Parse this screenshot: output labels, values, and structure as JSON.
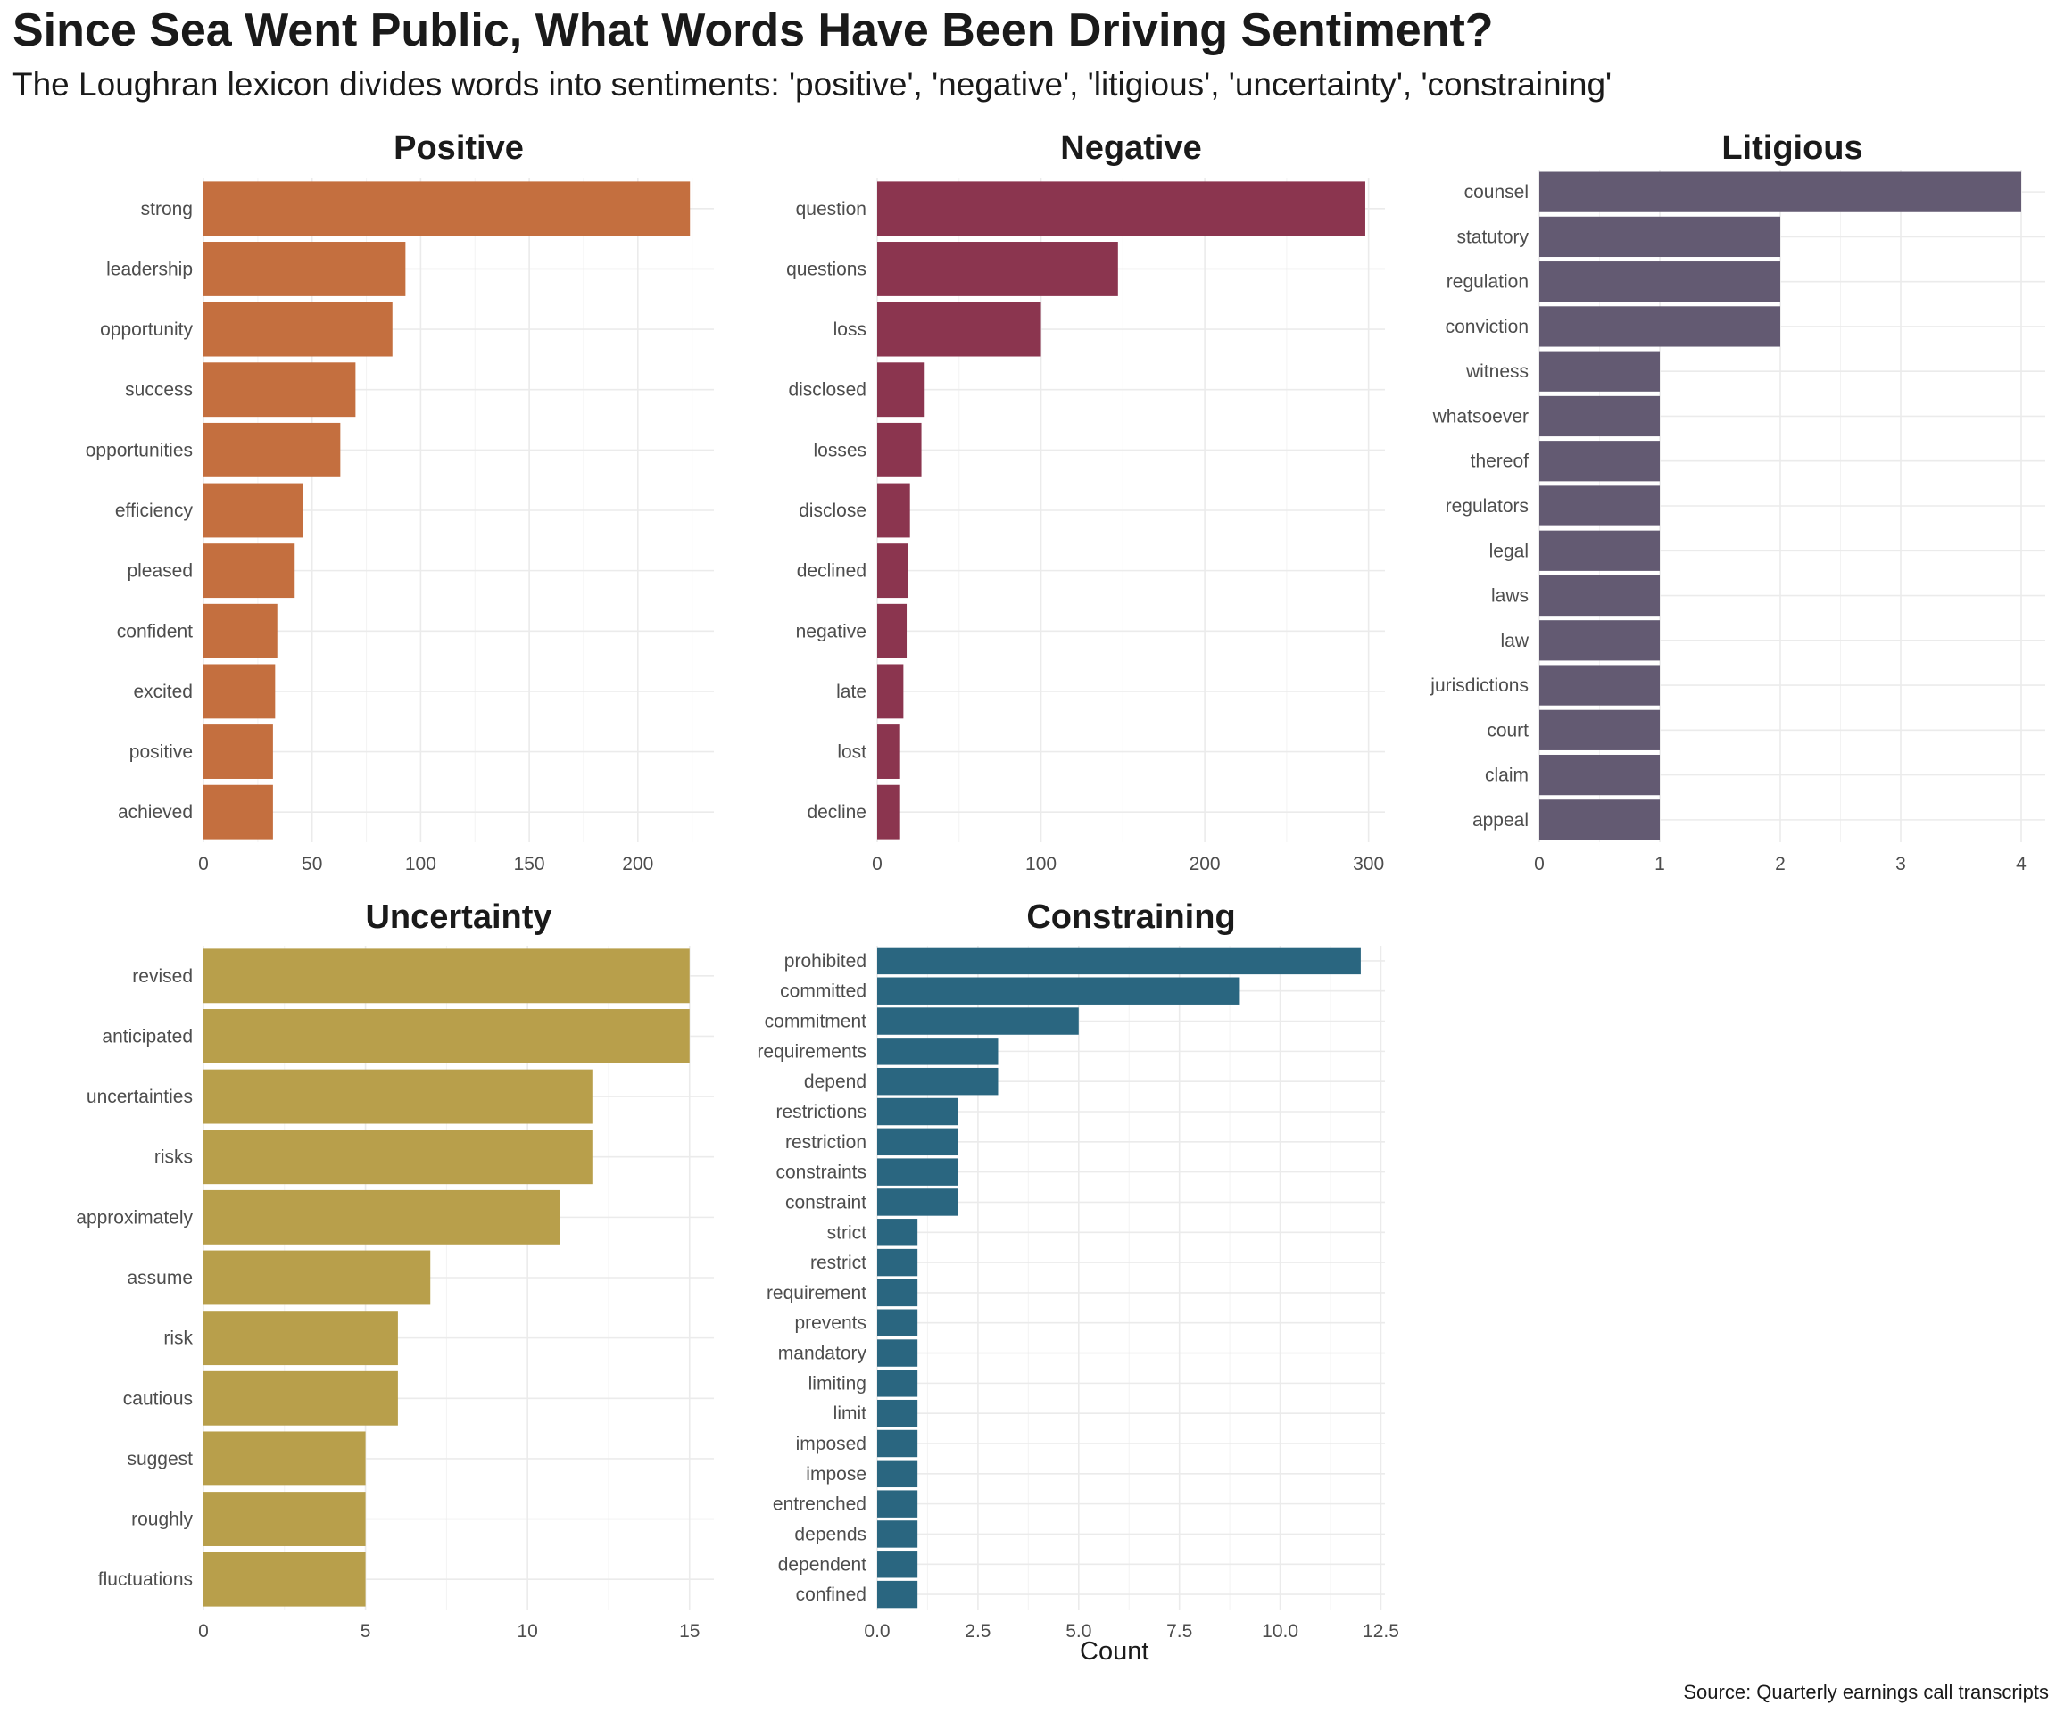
{
  "title": "Since Sea Went Public, What Words Have Been Driving Sentiment?",
  "subtitle": "The Loughran lexicon divides words into sentiments: 'positive', 'negative', 'litigious', 'uncertainty', 'constraining'",
  "x_axis_label": "Count",
  "caption": "Source: Quarterly earnings call transcripts",
  "chart_data": [
    {
      "type": "bar",
      "orientation": "horizontal",
      "title": "Positive",
      "color": "#C46F3F",
      "categories": [
        "strong",
        "leadership",
        "opportunity",
        "success",
        "opportunities",
        "efficiency",
        "pleased",
        "confident",
        "excited",
        "positive",
        "achieved"
      ],
      "values": [
        224,
        93,
        87,
        70,
        63,
        46,
        42,
        34,
        33,
        32,
        32
      ],
      "xlim": [
        0,
        235
      ],
      "ticks": [
        0,
        50,
        100,
        150,
        200
      ],
      "tick_labels": [
        "0",
        "50",
        "100",
        "150",
        "200"
      ],
      "grid": true
    },
    {
      "type": "bar",
      "orientation": "horizontal",
      "title": "Negative",
      "color": "#8B354F",
      "categories": [
        "question",
        "questions",
        "loss",
        "disclosed",
        "losses",
        "disclose",
        "declined",
        "negative",
        "late",
        "lost",
        "decline"
      ],
      "values": [
        298,
        147,
        100,
        29,
        27,
        20,
        19,
        18,
        16,
        14,
        14
      ],
      "xlim": [
        0,
        310
      ],
      "ticks": [
        0,
        100,
        200,
        300
      ],
      "tick_labels": [
        "0",
        "100",
        "200",
        "300"
      ],
      "grid": true
    },
    {
      "type": "bar",
      "orientation": "horizontal",
      "title": "Litigious",
      "color": "#635A72",
      "categories": [
        "counsel",
        "statutory",
        "regulation",
        "conviction",
        "witness",
        "whatsoever",
        "thereof",
        "regulators",
        "legal",
        "laws",
        "law",
        "jurisdictions",
        "court",
        "claim",
        "appeal"
      ],
      "values": [
        4,
        2,
        2,
        2,
        1,
        1,
        1,
        1,
        1,
        1,
        1,
        1,
        1,
        1,
        1
      ],
      "xlim": [
        0,
        4.2
      ],
      "ticks": [
        0,
        1,
        2,
        3,
        4
      ],
      "tick_labels": [
        "0",
        "1",
        "2",
        "3",
        "4"
      ],
      "grid": true
    },
    {
      "type": "bar",
      "orientation": "horizontal",
      "title": "Uncertainty",
      "color": "#B89F4B",
      "categories": [
        "revised",
        "anticipated",
        "uncertainties",
        "risks",
        "approximately",
        "assume",
        "risk",
        "cautious",
        "suggest",
        "roughly",
        "fluctuations"
      ],
      "values": [
        15,
        15,
        12,
        12,
        11,
        7,
        6,
        6,
        5,
        5,
        5
      ],
      "xlim": [
        0,
        15.75
      ],
      "ticks": [
        0,
        5,
        10,
        15
      ],
      "tick_labels": [
        "0",
        "5",
        "10",
        "15"
      ],
      "grid": true
    },
    {
      "type": "bar",
      "orientation": "horizontal",
      "title": "Constraining",
      "color": "#2A6680",
      "categories": [
        "prohibited",
        "committed",
        "commitment",
        "requirements",
        "depend",
        "restrictions",
        "restriction",
        "constraints",
        "constraint",
        "strict",
        "restrict",
        "requirement",
        "prevents",
        "mandatory",
        "limiting",
        "limit",
        "imposed",
        "impose",
        "entrenched",
        "depends",
        "dependent",
        "confined"
      ],
      "values": [
        12,
        9,
        5,
        3,
        3,
        2,
        2,
        2,
        2,
        1,
        1,
        1,
        1,
        1,
        1,
        1,
        1,
        1,
        1,
        1,
        1,
        1
      ],
      "xlim": [
        0,
        12.6
      ],
      "ticks": [
        0,
        2.5,
        5,
        7.5,
        10,
        12.5
      ],
      "tick_labels": [
        "0.0",
        "2.5",
        "5.0",
        "7.5",
        "10.0",
        "12.5"
      ],
      "grid": true
    }
  ]
}
